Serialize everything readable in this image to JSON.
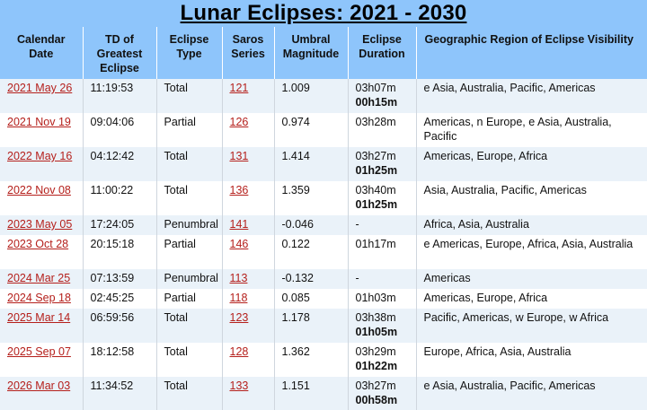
{
  "title": "Lunar Eclipses: 2021 - 2030",
  "headers": {
    "date": [
      "Calendar",
      "Date"
    ],
    "td": [
      "TD of",
      "Greatest",
      "Eclipse"
    ],
    "type": [
      "Eclipse",
      "Type"
    ],
    "saros": [
      "Saros",
      "Series"
    ],
    "mag": [
      "Umbral",
      "Magnitude"
    ],
    "dur": [
      "Eclipse",
      "Duration"
    ],
    "geo": "Geographic Region of Eclipse Visibility"
  },
  "rows": [
    {
      "date": "2021 May 26",
      "td": "11:19:53",
      "type": "Total",
      "saros": "121",
      "mag": "1.009",
      "dur": "03h07m",
      "dur2": "00h15m",
      "geo": "e Asia, Australia, Pacific, Americas",
      "lines": 2
    },
    {
      "date": "2021 Nov 19",
      "td": "09:04:06",
      "type": "Partial",
      "saros": "126",
      "mag": "0.974",
      "dur": "03h28m",
      "dur2": "",
      "geo": "Americas, n Europe, e Asia, Australia, Pacific",
      "lines": 2
    },
    {
      "date": "2022 May 16",
      "td": "04:12:42",
      "type": "Total",
      "saros": "131",
      "mag": "1.414",
      "dur": "03h27m",
      "dur2": "01h25m",
      "geo": "Americas, Europe, Africa",
      "lines": 2
    },
    {
      "date": "2022 Nov 08",
      "td": "11:00:22",
      "type": "Total",
      "saros": "136",
      "mag": "1.359",
      "dur": "03h40m",
      "dur2": "01h25m",
      "geo": "Asia, Australia, Pacific, Americas",
      "lines": 2
    },
    {
      "date": "2023 May 05",
      "td": "17:24:05",
      "type": "Penumbral",
      "saros": "141",
      "mag": "-0.046",
      "dur": "-",
      "dur2": "",
      "geo": "Africa, Asia, Australia",
      "lines": 1
    },
    {
      "date": "2023 Oct 28",
      "td": "20:15:18",
      "type": "Partial",
      "saros": "146",
      "mag": "0.122",
      "dur": "01h17m",
      "dur2": "",
      "geo": "e Americas, Europe, Africa, Asia, Australia",
      "lines": 2
    },
    {
      "date": "2024 Mar 25",
      "td": "07:13:59",
      "type": "Penumbral",
      "saros": "113",
      "mag": "-0.132",
      "dur": "-",
      "dur2": "",
      "geo": "Americas",
      "lines": 1
    },
    {
      "date": "2024 Sep 18",
      "td": "02:45:25",
      "type": "Partial",
      "saros": "118",
      "mag": "0.085",
      "dur": "01h03m",
      "dur2": "",
      "geo": "Americas, Europe, Africa",
      "lines": 1
    },
    {
      "date": "2025 Mar 14",
      "td": "06:59:56",
      "type": "Total",
      "saros": "123",
      "mag": "1.178",
      "dur": "03h38m",
      "dur2": "01h05m",
      "geo": "Pacific, Americas, w Europe, w Africa",
      "lines": 2
    },
    {
      "date": "2025 Sep 07",
      "td": "18:12:58",
      "type": "Total",
      "saros": "128",
      "mag": "1.362",
      "dur": "03h29m",
      "dur2": "01h22m",
      "geo": "Europe, Africa, Asia, Australia",
      "lines": 2
    },
    {
      "date": "2026 Mar 03",
      "td": "11:34:52",
      "type": "Total",
      "saros": "133",
      "mag": "1.151",
      "dur": "03h27m",
      "dur2": "00h58m",
      "geo": "e Asia, Australia, Pacific, Americas",
      "lines": 2
    }
  ],
  "colors": {
    "header_bg": "#8ec5fb",
    "link": "#b5201c",
    "row_alt": "#eaf2f9"
  }
}
